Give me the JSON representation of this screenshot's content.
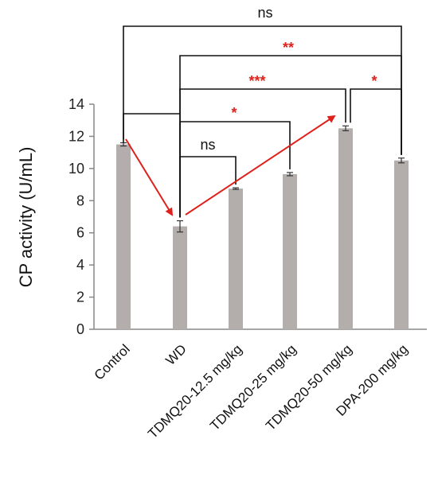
{
  "chart_data": {
    "type": "bar",
    "ylabel": "CP activity  (U/mL)",
    "ylim": [
      0,
      14
    ],
    "yticks": [
      0,
      2,
      4,
      6,
      8,
      10,
      12,
      14
    ],
    "categories": [
      "Control",
      "WD",
      "TDMQ20-12.5 mg/kg",
      "TDMQ20-25 mg/kg",
      "TDMQ20-50 mg/kg",
      "DPA-200 mg/kg"
    ],
    "values": [
      11.5,
      6.4,
      8.75,
      9.65,
      12.5,
      10.5
    ],
    "errors": [
      0.1,
      0.35,
      0.05,
      0.1,
      0.15,
      0.15
    ],
    "bar_color": "#b3aeac",
    "significance": [
      {
        "from": "Control",
        "to": "DPA-200 mg/kg",
        "label": "ns",
        "color": "#111111"
      },
      {
        "from": "WD",
        "to": "DPA-200 mg/kg",
        "label": "**",
        "color": "#e0201b"
      },
      {
        "from": "WD",
        "to": "TDMQ20-50 mg/kg",
        "label": "***",
        "color": "#e0201b"
      },
      {
        "from": "TDMQ20-50 mg/kg",
        "to": "DPA-200 mg/kg",
        "label": "*",
        "color": "#e0201b"
      },
      {
        "from": "WD",
        "to": "TDMQ20-25 mg/kg",
        "label": "*",
        "color": "#e0201b"
      },
      {
        "from": "Control",
        "to": "WD",
        "label": "",
        "color": "#111111"
      },
      {
        "from": "WD",
        "to": "TDMQ20-12.5 mg/kg",
        "label": "ns",
        "color": "#111111"
      }
    ],
    "trend_arrows": [
      {
        "from": "Control",
        "to": "WD",
        "color": "#e0201b"
      },
      {
        "from": "WD",
        "to": "TDMQ20-50 mg/kg",
        "color": "#e0201b"
      }
    ]
  }
}
